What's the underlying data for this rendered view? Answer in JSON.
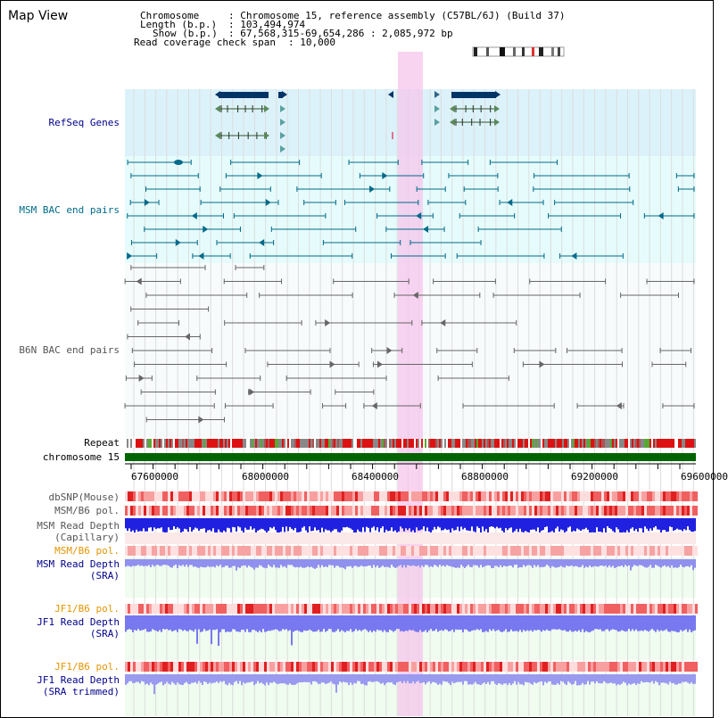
{
  "app": {
    "title": "Map View"
  },
  "info": {
    "chromosome_key": "Chromosome",
    "chromosome_val": ": Chromosome 15, reference assembly (C57BL/6J) (Build 37)",
    "length_key": "Length (b.p.)",
    "length_val": ": 103,494,974",
    "show_key": "Show (b.p.)",
    "show_val": ": 67,568,315-69,654,286 : 2,085,972 bp",
    "coverage_key": "Read coverage check span",
    "coverage_val": ": 10,000"
  },
  "tracks": [
    {
      "id": "refseq",
      "label": "RefSeq Genes",
      "color": "#00008b"
    },
    {
      "id": "msm_bac",
      "label": "MSM BAC end pairs",
      "color": "#006a8a"
    },
    {
      "id": "b6n_bac",
      "label": "B6N BAC end pairs",
      "color": "#555555"
    },
    {
      "id": "repeat",
      "label": "Repeat",
      "color": "#000000"
    },
    {
      "id": "chromosome",
      "label": "chromosome 15",
      "color": "#000000"
    },
    {
      "id": "dbsnp",
      "label": "dbSNP(Mouse)",
      "color": "#555555"
    },
    {
      "id": "msm_b6_pol_1",
      "label": "MSM/B6 pol.",
      "color": "#555555"
    },
    {
      "id": "msm_depth_cap_1",
      "label": "MSM Read Depth",
      "color": "#555555"
    },
    {
      "id": "msm_depth_cap_2",
      "label": "(Capillary)",
      "color": "#555555"
    },
    {
      "id": "msm_b6_pol_2",
      "label": "MSM/B6 pol.",
      "color": "#e69500"
    },
    {
      "id": "msm_depth_sra_1",
      "label": "MSM Read Depth",
      "color": "#00008b"
    },
    {
      "id": "msm_depth_sra_2",
      "label": "(SRA)",
      "color": "#00008b"
    },
    {
      "id": "jf1_b6_pol_1",
      "label": "JF1/B6 pol.",
      "color": "#e69500"
    },
    {
      "id": "jf1_depth_sra_1",
      "label": "JF1 Read Depth",
      "color": "#00008b"
    },
    {
      "id": "jf1_depth_sra_2",
      "label": "(SRA)",
      "color": "#00008b"
    },
    {
      "id": "jf1_b6_pol_2",
      "label": "JF1/B6 pol.",
      "color": "#e69500"
    },
    {
      "id": "jf1_depth_trim_1",
      "label": "JF1 Read Depth",
      "color": "#00008b"
    },
    {
      "id": "jf1_depth_trim_2",
      "label": "(SRA trimmed)",
      "color": "#00008b"
    }
  ],
  "axis": {
    "ticks": [
      "67600000",
      "68000000",
      "68400000",
      "68800000",
      "69200000",
      "69600000"
    ]
  },
  "colors": {
    "highlight": "#f6c6ec",
    "refseq_bg": "#dcf2fa",
    "bac_bg": "#e6fcfc",
    "gene": "#003366",
    "bac_msm": "#006a8a",
    "bac_b6n": "#666666",
    "chrom": "#006400"
  }
}
